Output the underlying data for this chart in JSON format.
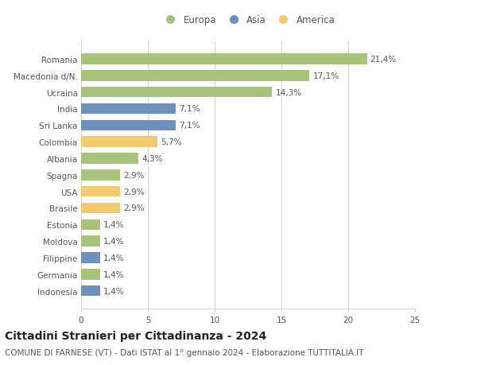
{
  "countries": [
    "Romania",
    "Macedonia d/N.",
    "Ucraina",
    "India",
    "Sri Lanka",
    "Colombia",
    "Albania",
    "Spagna",
    "USA",
    "Brasile",
    "Estonia",
    "Moldova",
    "Filippine",
    "Germania",
    "Indonesia"
  ],
  "values": [
    21.4,
    17.1,
    14.3,
    7.1,
    7.1,
    5.7,
    4.3,
    2.9,
    2.9,
    2.9,
    1.4,
    1.4,
    1.4,
    1.4,
    1.4
  ],
  "labels": [
    "21,4%",
    "17,1%",
    "14,3%",
    "7,1%",
    "7,1%",
    "5,7%",
    "4,3%",
    "2,9%",
    "2,9%",
    "2,9%",
    "1,4%",
    "1,4%",
    "1,4%",
    "1,4%",
    "1,4%"
  ],
  "continents": [
    "Europa",
    "Europa",
    "Europa",
    "Asia",
    "Asia",
    "America",
    "Europa",
    "Europa",
    "America",
    "America",
    "Europa",
    "Europa",
    "Asia",
    "Europa",
    "Asia"
  ],
  "colors": {
    "Europa": "#a8c47a",
    "Asia": "#6e90bc",
    "America": "#f5c96e"
  },
  "xlim": [
    0,
    25
  ],
  "xticks": [
    0,
    5,
    10,
    15,
    20,
    25
  ],
  "title": "Cittadini Stranieri per Cittadinanza - 2024",
  "subtitle": "COMUNE DI FARNESE (VT) - Dati ISTAT al 1° gennaio 2024 - Elaborazione TUTTITALIA.IT",
  "legend_order": [
    "Europa",
    "Asia",
    "America"
  ],
  "background_color": "#ffffff",
  "grid_color": "#d0d0d0",
  "bar_height": 0.65,
  "label_fontsize": 7.5,
  "tick_fontsize": 7.5,
  "title_fontsize": 10,
  "subtitle_fontsize": 7.5
}
